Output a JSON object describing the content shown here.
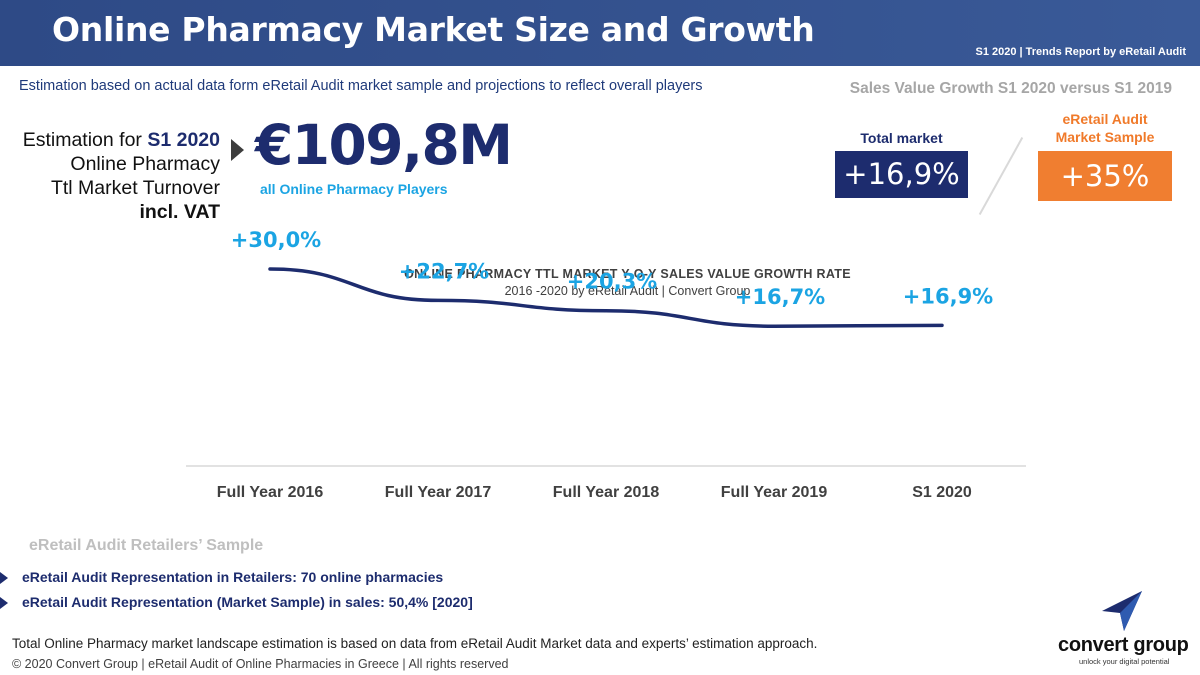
{
  "header": {
    "title": "Online Pharmacy Market Size and Growth",
    "subtitle": "S1 2020 | Trends Report by eRetail Audit"
  },
  "estimation_note": "Estimation based on actual data form eRetail Audit market sample and projections to reflect overall players",
  "estimate": {
    "line1_prefix": "Estimation for ",
    "line1_period": "S1 2020",
    "line2": "Online Pharmacy",
    "line3": "Ttl Market Turnover",
    "line4": "incl. VAT",
    "value": "€109,8M",
    "value_note": "all Online Pharmacy Players"
  },
  "growth": {
    "heading": "Sales Value Growth S1 2020 versus S1 2019",
    "total_label": "Total market",
    "total_value": "+16,9%",
    "sample_label_line1": "eRetail Audit",
    "sample_label_line2": "Market Sample",
    "sample_value": "+35%"
  },
  "colors": {
    "navy": "#1d2c6e",
    "accent_blue": "#1ba4e3",
    "orange": "#f07e30",
    "header_bg": "#34528f"
  },
  "chart_data": {
    "type": "line",
    "title": "ONLINE PHARMACY TTL MARKET Y-O-Y SALES VALUE GROWTH RATE",
    "subtitle": "2016 -2020 by eRetail Audit | Convert Group",
    "categories": [
      "Full Year 2016",
      "Full Year 2017",
      "Full Year 2018",
      "Full Year 2019",
      "S1 2020"
    ],
    "values": [
      30.0,
      22.7,
      20.3,
      16.7,
      16.9
    ],
    "labels": [
      "+30,0%",
      "+22,7%",
      "+20,3%",
      "+16,7%",
      "+16,9%"
    ],
    "ylim": [
      0,
      100
    ],
    "grid": false,
    "xlabel": "",
    "ylabel": ""
  },
  "sample": {
    "heading": "eRetail Audit Retailers’ Sample",
    "items": [
      "eRetail Audit Representation in Retailers: 70 online pharmacies",
      "eRetail Audit Representation (Market Sample) in sales: 50,4% [2020]"
    ]
  },
  "footnote": "Total Online Pharmacy market landscape estimation is based on data from eRetail Audit Market data and experts’ estimation approach.",
  "copyright": "© 2020 Convert Group | eRetail Audit of Online Pharmacies in Greece | All rights reserved",
  "logo": {
    "name": "convert group",
    "tagline": "unlock your digital potential"
  }
}
